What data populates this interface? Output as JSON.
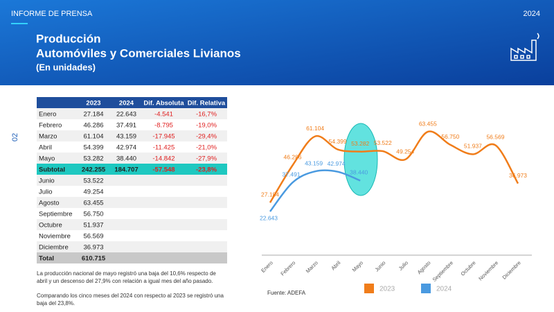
{
  "header": {
    "tag": "INFORME DE PRENSA",
    "year": "2024",
    "title": "Producción",
    "subtitle": "Automóviles y Comerciales Livianos",
    "unit": "(En unidades)",
    "page": "02"
  },
  "table": {
    "columns": [
      "2023",
      "2024",
      "Dif. Absoluta",
      "Dif. Relativa"
    ],
    "first_half": [
      [
        "Enero",
        "27.184",
        "22.643",
        "-4.541",
        "-16,7%"
      ],
      [
        "Febrero",
        "46.286",
        "37.491",
        "-8.795",
        "-19,0%"
      ],
      [
        "Marzo",
        "61.104",
        "43.159",
        "-17.945",
        "-29,4%"
      ],
      [
        "Abril",
        "54.399",
        "42.974",
        "-11.425",
        "-21,0%"
      ],
      [
        "Mayo",
        "53.282",
        "38.440",
        "-14.842",
        "-27,9%"
      ]
    ],
    "subtotal": [
      "Subtotal",
      "242.255",
      "184.707",
      "-57.548",
      "-23,8%"
    ],
    "second_half": [
      [
        "Junio",
        "53.522"
      ],
      [
        "Julio",
        "49.254"
      ],
      [
        "Agosto",
        "63.455"
      ],
      [
        "Septiembre",
        "56.750"
      ],
      [
        "Octubre",
        "51.937"
      ],
      [
        "Noviembre",
        "56.569"
      ],
      [
        "Diciembre",
        "36.973"
      ]
    ],
    "total": [
      "Total",
      "610.715"
    ]
  },
  "notes": [
    "La producción nacional de mayo registró una baja del 10,6% respecto de abril y un descenso del 27,9% con relación a igual mes del año pasado.",
    "Comparando los cinco meses del 2024 con respecto al 2023 se registró una baja del 23,8%."
  ],
  "source": "Fuente: ADEFA",
  "chart_data": {
    "type": "line",
    "categories": [
      "Enero",
      "Febrero",
      "Marzo",
      "Abril",
      "Mayo",
      "Junio",
      "Julio",
      "Agosto",
      "Septiembre",
      "Octubre",
      "Noviembre",
      "Diciembre"
    ],
    "series": [
      {
        "name": "2023",
        "color": "#f07d1a",
        "values": [
          27184,
          46286,
          61104,
          54399,
          53282,
          53522,
          49254,
          63455,
          56750,
          51937,
          56569,
          36973
        ],
        "value_labels": [
          "27.184",
          "46.286",
          "61.104",
          "54.399",
          "53.282",
          "53.522",
          "49.254",
          "63.455",
          "56.750",
          "51.937",
          "56.569",
          "36.973"
        ]
      },
      {
        "name": "2024",
        "color": "#4a9ae0",
        "values": [
          22643,
          37491,
          43159,
          42974,
          38440,
          null,
          null,
          null,
          null,
          null,
          null,
          null
        ],
        "value_labels": [
          "22.643",
          "37.491",
          "43.159",
          "42.974",
          "38.440",
          null,
          null,
          null,
          null,
          null,
          null,
          null
        ]
      }
    ],
    "legend": "bottom"
  }
}
